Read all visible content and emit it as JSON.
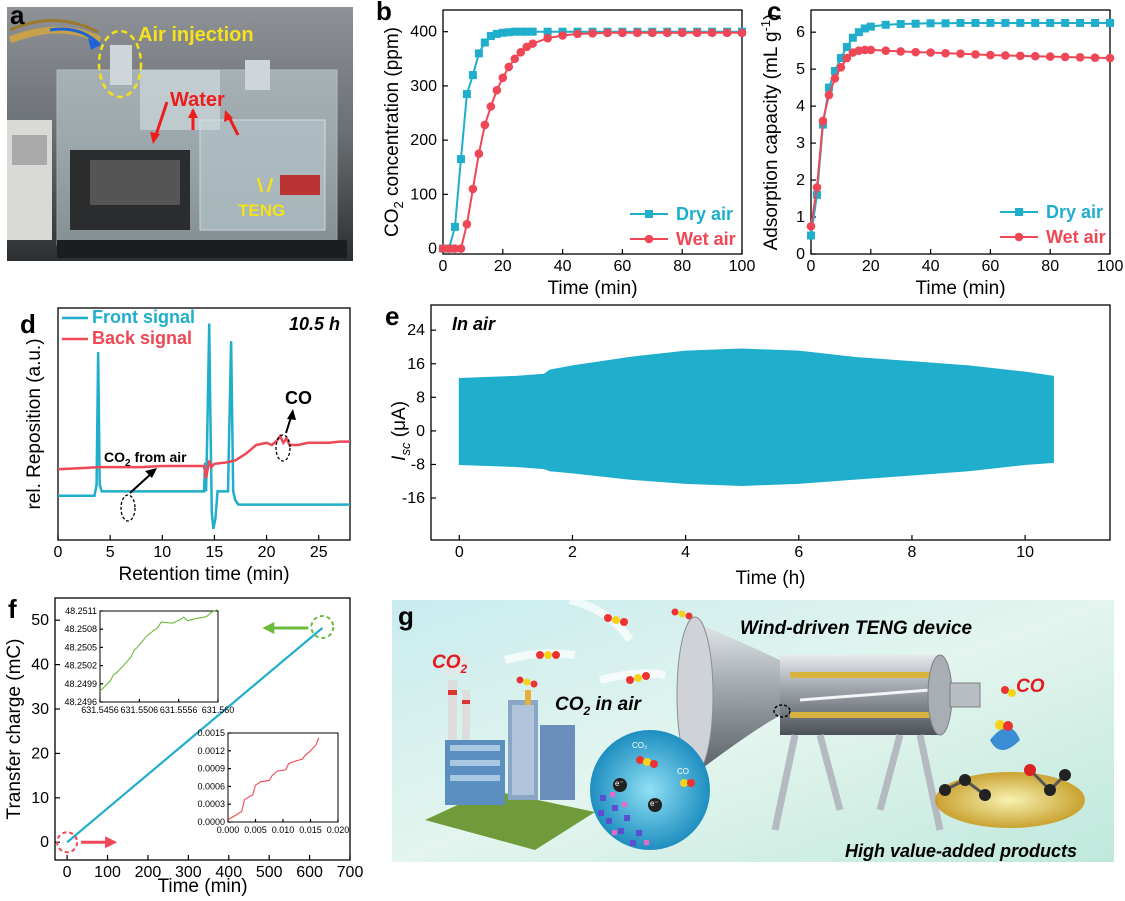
{
  "colors": {
    "teal": "#1faecb",
    "red": "#ef4756",
    "green": "#6cbb3c",
    "yellow": "#f5e21b",
    "bright_red": "#ef1c1c"
  },
  "panels": {
    "a": "a",
    "b": "b",
    "c": "c",
    "d": "d",
    "e": "e",
    "f": "f",
    "g": "g"
  },
  "photo_a": {
    "air_injection": "Air injection",
    "water": "Water",
    "teng": "TENG"
  },
  "scheme_g": {
    "title": "Wind-driven TENG device",
    "co2": "CO",
    "co2_sub": "2",
    "co2_air": "CO",
    "co2_air_sub": "2",
    "co2_air_rest": " in air",
    "co": "CO",
    "products": "High value-added products",
    "small_co2": "CO₂",
    "small_co": "CO",
    "eminus": "e⁻"
  },
  "chart_data": [
    {
      "id": "b",
      "type": "line",
      "xlabel": "Time (min)",
      "ylabel_parts": [
        "CO",
        "2",
        " concentration (ppm)"
      ],
      "xlim": [
        0,
        100
      ],
      "ylim": [
        -10,
        440
      ],
      "xticks": [
        0,
        20,
        40,
        60,
        80,
        100
      ],
      "yticks": [
        0,
        100,
        200,
        300,
        400
      ],
      "series": [
        {
          "name": "Dry air",
          "color": "#1faecb",
          "marker": "square",
          "x": [
            0,
            2,
            4,
            6,
            8,
            10,
            12,
            14,
            16,
            18,
            20,
            22,
            24,
            26,
            28,
            30,
            35,
            40,
            45,
            50,
            55,
            60,
            65,
            70,
            75,
            80,
            85,
            90,
            95,
            100
          ],
          "y": [
            0,
            0,
            40,
            165,
            285,
            320,
            360,
            380,
            392,
            396,
            398,
            399,
            400,
            400,
            400,
            400,
            400,
            400,
            400,
            400,
            400,
            400,
            400,
            400,
            400,
            400,
            400,
            400,
            400,
            400
          ]
        },
        {
          "name": "Wet air",
          "color": "#ef4756",
          "marker": "circle",
          "x": [
            0,
            2,
            4,
            6,
            8,
            10,
            12,
            14,
            16,
            18,
            20,
            22,
            24,
            26,
            28,
            30,
            35,
            40,
            45,
            50,
            55,
            60,
            65,
            70,
            75,
            80,
            85,
            90,
            95,
            100
          ],
          "y": [
            0,
            0,
            0,
            0,
            45,
            110,
            175,
            228,
            262,
            292,
            315,
            335,
            350,
            362,
            372,
            378,
            388,
            393,
            396,
            397,
            398,
            398,
            398,
            398,
            398,
            398,
            398,
            398,
            398,
            398
          ]
        }
      ]
    },
    {
      "id": "c",
      "type": "line",
      "xlabel": "Time (min)",
      "ylabel_parts": [
        "Adsorption capacity (mL g",
        "-1",
        ")"
      ],
      "xlim": [
        0,
        100
      ],
      "ylim": [
        0,
        6.6
      ],
      "xticks": [
        0,
        20,
        40,
        60,
        80,
        100
      ],
      "yticks": [
        0,
        1,
        2,
        3,
        4,
        5,
        6
      ],
      "series": [
        {
          "name": "Dry air",
          "color": "#1faecb",
          "marker": "square",
          "x": [
            0,
            2,
            4,
            6,
            8,
            10,
            12,
            14,
            16,
            18,
            20,
            25,
            30,
            35,
            40,
            45,
            50,
            55,
            60,
            65,
            70,
            75,
            80,
            85,
            90,
            95,
            100
          ],
          "y": [
            0.5,
            1.6,
            3.5,
            4.5,
            4.95,
            5.3,
            5.6,
            5.85,
            6.0,
            6.1,
            6.15,
            6.2,
            6.22,
            6.23,
            6.24,
            6.24,
            6.25,
            6.25,
            6.25,
            6.25,
            6.25,
            6.25,
            6.25,
            6.25,
            6.25,
            6.25,
            6.25
          ]
        },
        {
          "name": "Wet air",
          "color": "#ef4756",
          "marker": "circle",
          "x": [
            0,
            2,
            4,
            6,
            8,
            10,
            12,
            14,
            16,
            18,
            20,
            25,
            30,
            35,
            40,
            45,
            50,
            55,
            60,
            65,
            70,
            75,
            80,
            85,
            90,
            95,
            100
          ],
          "y": [
            0.75,
            1.8,
            3.6,
            4.3,
            4.75,
            5.05,
            5.3,
            5.45,
            5.5,
            5.52,
            5.52,
            5.5,
            5.48,
            5.46,
            5.45,
            5.43,
            5.42,
            5.4,
            5.38,
            5.37,
            5.36,
            5.35,
            5.34,
            5.33,
            5.32,
            5.31,
            5.3
          ]
        }
      ]
    },
    {
      "id": "d",
      "type": "line",
      "xlabel": "Retention time (min)",
      "ylabel": "rel. Reposition (a.u.)",
      "xlim": [
        0,
        28
      ],
      "xticks": [
        0,
        5,
        10,
        15,
        20,
        25
      ],
      "annotation": "10.5 h",
      "label_co2": "CO",
      "label_co2_sub": "2",
      "label_co2_rest": " from air",
      "label_co": "CO",
      "series": [
        {
          "name": "Front signal",
          "color": "#1faecb",
          "x": [
            0,
            3.5,
            3.7,
            3.85,
            4.0,
            4.2,
            14.0,
            14.1,
            14.2,
            14.3,
            14.5,
            14.6,
            14.75,
            14.9,
            15.1,
            15.3,
            16.3,
            16.6,
            16.8,
            17.0,
            17.3,
            28
          ],
          "y": [
            0.2,
            0.2,
            0.25,
            0.85,
            0.25,
            0.22,
            0.22,
            0.35,
            0.22,
            0.45,
            0.98,
            0.6,
            0.12,
            0.05,
            0.1,
            0.22,
            0.22,
            0.9,
            0.22,
            0.18,
            0.16,
            0.16
          ]
        },
        {
          "name": "Back signal",
          "color": "#ef4756",
          "x": [
            0,
            2,
            4,
            6,
            8,
            10,
            12,
            14,
            14.2,
            14.5,
            14.7,
            15.0,
            16,
            17,
            18,
            18.5,
            19,
            20,
            20.5,
            21,
            21.3,
            21.6,
            21.9,
            22.2,
            23,
            24,
            25,
            26,
            27,
            28
          ],
          "y": [
            0.32,
            0.325,
            0.33,
            0.33,
            0.33,
            0.335,
            0.335,
            0.335,
            0.28,
            0.36,
            0.33,
            0.345,
            0.35,
            0.36,
            0.39,
            0.41,
            0.43,
            0.44,
            0.43,
            0.45,
            0.47,
            0.44,
            0.46,
            0.43,
            0.43,
            0.44,
            0.44,
            0.44,
            0.445,
            0.445
          ]
        }
      ]
    },
    {
      "id": "e",
      "type": "area",
      "xlabel": "Time (h)",
      "ylabel_main": "I",
      "ylabel_sub": "sc",
      "ylabel_rest": " (μA)",
      "annotation": "In air",
      "xlim": [
        -0.5,
        11.5
      ],
      "ylim": [
        -26,
        30
      ],
      "xticks": [
        0,
        2,
        4,
        6,
        8,
        10
      ],
      "yticks": [
        -16,
        -8,
        0,
        8,
        16,
        24
      ],
      "envelope_t": [
        0,
        1,
        1.5,
        1.6,
        2,
        3,
        4,
        5,
        6,
        7,
        8,
        9,
        10,
        10.5
      ],
      "envelope_top": [
        12.5,
        13,
        13.5,
        14.5,
        15.5,
        17.5,
        19,
        19.5,
        19,
        17.5,
        16.5,
        15.5,
        14,
        13
      ],
      "envelope_bottom": [
        -8,
        -8.5,
        -9,
        -9.5,
        -10,
        -11.5,
        -12.5,
        -13,
        -12.5,
        -11.5,
        -10.5,
        -9.5,
        -8,
        -7.5
      ],
      "color": "#1faecb"
    },
    {
      "id": "f",
      "type": "line",
      "xlabel": "Time (min)",
      "ylabel": "Transfer charge (mC)",
      "xlim": [
        -30,
        700
      ],
      "ylim": [
        -4,
        55
      ],
      "xticks": [
        0,
        100,
        200,
        300,
        400,
        500,
        600,
        700
      ],
      "yticks": [
        0,
        10,
        20,
        30,
        40,
        50
      ],
      "series": [
        {
          "name": "Transfer charge",
          "color": "#1faecb",
          "x": [
            0,
            631.5
          ],
          "y": [
            0,
            48.25
          ]
        }
      ],
      "inset_top": {
        "color": "#6cbb3c",
        "xticks": [
          "631.5456",
          "631.5506",
          "631.5556",
          "631.560"
        ],
        "yticks": [
          "48.2496",
          "48.2499",
          "48.2502",
          "48.2505",
          "48.2508",
          "48.2511"
        ],
        "x": [
          631.5448,
          631.5462,
          631.5466,
          631.547,
          631.5478,
          631.549,
          631.5494,
          631.5498,
          631.551,
          631.552,
          631.5525,
          631.553,
          631.5545,
          631.5556,
          631.556,
          631.5565,
          631.5578,
          631.5588,
          631.5592,
          631.5597,
          631.5605
        ],
        "y": [
          48.24978,
          48.24995,
          48.25005,
          48.25008,
          48.25018,
          48.25035,
          48.25046,
          48.2505,
          48.25068,
          48.25078,
          48.25082,
          48.25092,
          48.2509,
          48.25096,
          48.251,
          48.25094,
          48.25098,
          48.251,
          48.25102,
          48.25108,
          48.25112
        ]
      },
      "inset_bottom": {
        "color": "#ef4756",
        "xticks": [
          "0.000",
          "0.005",
          "0.010",
          "0.015",
          "0.020"
        ],
        "yticks": [
          "0.0000",
          "0.0003",
          "0.0006",
          "0.0009",
          "0.0012",
          "0.0015"
        ],
        "x": [
          0.0,
          0.0015,
          0.0025,
          0.003,
          0.0038,
          0.0045,
          0.005,
          0.006,
          0.0075,
          0.008,
          0.009,
          0.0105,
          0.011,
          0.012,
          0.0135,
          0.014,
          0.015,
          0.016,
          0.0165
        ],
        "y": [
          4e-05,
          0.00012,
          0.00018,
          0.00038,
          0.00042,
          0.00046,
          0.00062,
          0.00068,
          0.0007,
          0.00078,
          0.00086,
          0.00088,
          0.00098,
          0.00102,
          0.00106,
          0.00112,
          0.0012,
          0.0013,
          0.00142
        ]
      }
    }
  ]
}
